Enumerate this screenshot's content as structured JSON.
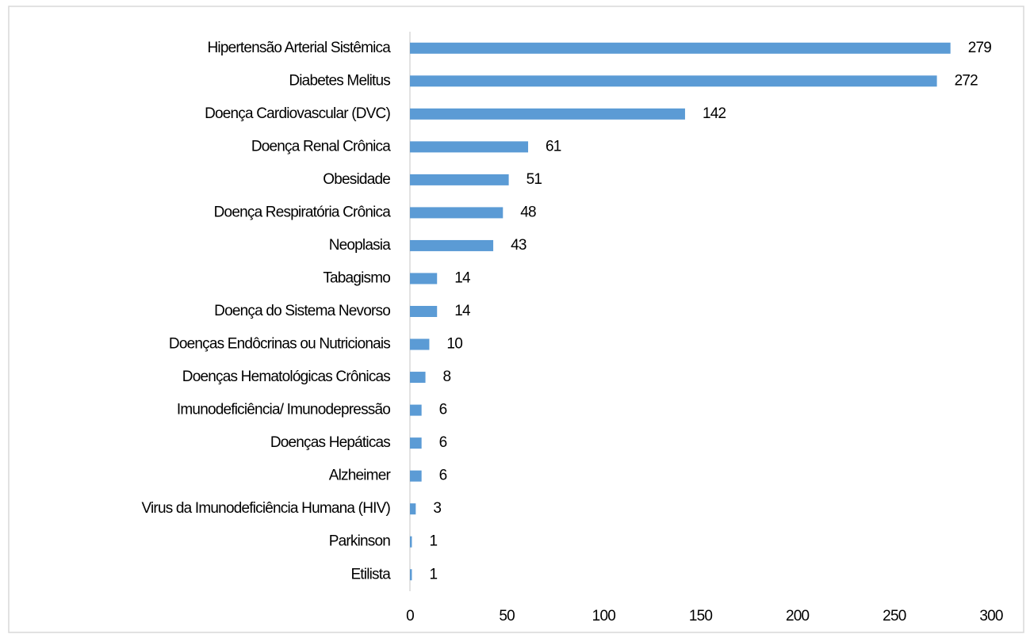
{
  "chart_data": {
    "type": "barh",
    "categories": [
      "Hipertensão Arterial Sistêmica",
      "Diabetes Melitus",
      "Doença Cardiovascular (DVC)",
      "Doença Renal Crônica",
      "Obesidade",
      "Doença Respiratória Crônica",
      "Neoplasia",
      "Tabagismo",
      "Doença do Sistema Nevorso",
      "Doenças Endôcrinas ou Nutricionais",
      "Doenças Hematológicas Crônicas",
      "Imunodeficiência/ Imunodepressão",
      "Doenças Hepáticas",
      "Alzheimer",
      "Virus da Imunodeficiência Humana (HIV)",
      "Parkinson",
      "Etilista"
    ],
    "values": [
      279,
      272,
      142,
      61,
      51,
      48,
      43,
      14,
      14,
      10,
      8,
      6,
      6,
      6,
      3,
      1,
      1
    ],
    "color": "#5b9bd5",
    "xlim": [
      0,
      300
    ],
    "xticks": [
      0,
      50,
      100,
      150,
      200,
      250,
      300
    ],
    "grid": false
  }
}
